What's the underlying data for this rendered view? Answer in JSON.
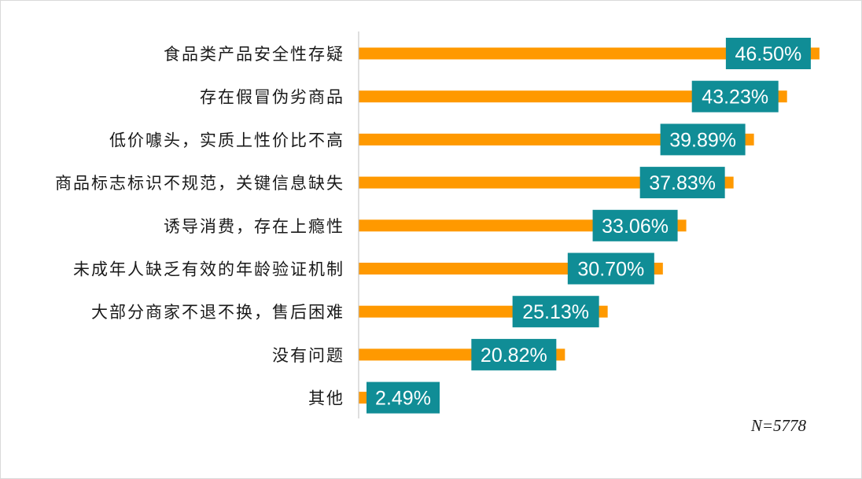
{
  "chart_data": {
    "type": "bar",
    "orientation": "horizontal",
    "categories": [
      "食品类产品安全性存疑",
      "存在假冒伪劣商品",
      "低价噱头，实质上性价比不高",
      "商品标志标识不规范，关键信息缺失",
      "诱导消费，存在上瘾性",
      "未成年人缺乏有效的年龄验证机制",
      "大部分商家不退不换，售后困难",
      "没有问题",
      "其他"
    ],
    "values": [
      46.5,
      43.23,
      39.89,
      37.83,
      33.06,
      30.7,
      25.13,
      20.82,
      2.49
    ],
    "value_labels": [
      "46.50%",
      "43.23%",
      "39.89%",
      "37.83%",
      "33.06%",
      "30.70%",
      "25.13%",
      "20.82%",
      "2.49%"
    ],
    "xlim": [
      0,
      50
    ],
    "grid": false,
    "legend": "none",
    "note": "N=5778"
  },
  "colors": {
    "bar": "#ff9900",
    "label_box": "#108d96",
    "axis": "#bfbfbf"
  }
}
